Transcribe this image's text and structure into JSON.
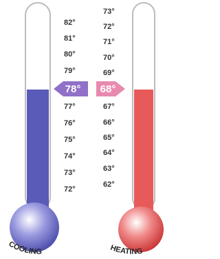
{
  "cooling": {
    "label": "COOLING",
    "setpoint": "78°",
    "scale": [
      "82°",
      "81°",
      "80°",
      "79°",
      "77°",
      "76°",
      "75°",
      "74°",
      "73°",
      "72°"
    ]
  },
  "heating": {
    "label": "HEATING",
    "setpoint": "68°",
    "scale": [
      "73°",
      "72°",
      "71°",
      "70°",
      "69°",
      "67°",
      "66°",
      "65°",
      "64°",
      "63°",
      "62°"
    ]
  }
}
